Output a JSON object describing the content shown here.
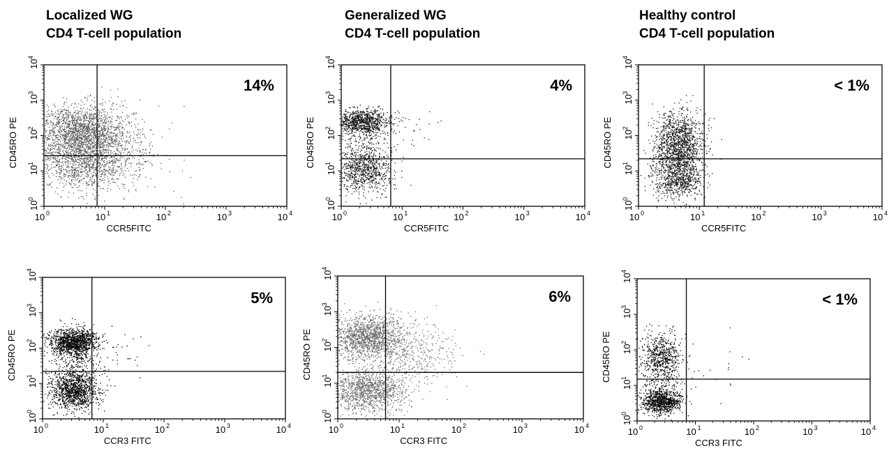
{
  "columns": [
    {
      "title_line1": "Localized WG",
      "title_line2": "CD4 T-cell population"
    },
    {
      "title_line1": "Generalized WG",
      "title_line2": "CD4 T-cell population"
    },
    {
      "title_line1": "Healthy control",
      "title_line2": "CD4 T-cell population"
    }
  ],
  "chart_data": [
    {
      "type": "scatter",
      "xlabel": "CCR5FITC",
      "ylabel": "CD45RO PE",
      "xscale": "log",
      "yscale": "log",
      "xlim": [
        1,
        10000
      ],
      "ylim": [
        1,
        10000
      ],
      "tick_base": "10",
      "tick_exponents": [
        "0",
        "1",
        "2",
        "3",
        "4"
      ],
      "gate_x": 7.5,
      "gate_y": 27,
      "quadrant_percent": "14%",
      "point_color": "#555555",
      "clusters": [
        {
          "x": 4,
          "y": 150,
          "sx": 0.36,
          "sy": 0.35,
          "n": 1500
        },
        {
          "x": 4,
          "y": 20,
          "sx": 0.38,
          "sy": 0.42,
          "n": 1300
        },
        {
          "x": 15,
          "y": 40,
          "sx": 0.4,
          "sy": 0.55,
          "n": 350
        }
      ]
    },
    {
      "type": "scatter",
      "xlabel": "CCR5FITC",
      "ylabel": "CD45RO PE",
      "xscale": "log",
      "yscale": "log",
      "xlim": [
        1,
        10000
      ],
      "ylim": [
        1,
        10000
      ],
      "tick_base": "10",
      "tick_exponents": [
        "0",
        "1",
        "2",
        "3",
        "4"
      ],
      "gate_x": 6.5,
      "gate_y": 22,
      "quadrant_percent": "4%",
      "point_color": "#111111",
      "clusters": [
        {
          "x": 2.2,
          "y": 250,
          "sx": 0.22,
          "sy": 0.18,
          "n": 900
        },
        {
          "x": 2.3,
          "y": 10,
          "sx": 0.24,
          "sy": 0.3,
          "n": 700
        },
        {
          "x": 2.2,
          "y": 40,
          "sx": 0.22,
          "sy": 0.45,
          "n": 300
        },
        {
          "x": 18,
          "y": 150,
          "sx": 0.25,
          "sy": 0.3,
          "n": 18
        }
      ]
    },
    {
      "type": "scatter",
      "xlabel": "CCR5FITC",
      "ylabel": "CD45RO PE",
      "xscale": "log",
      "yscale": "log",
      "xlim": [
        1,
        10000
      ],
      "ylim": [
        1,
        10000
      ],
      "tick_base": "10",
      "tick_exponents": [
        "0",
        "1",
        "2",
        "3",
        "4"
      ],
      "gate_x": 12,
      "gate_y": 22,
      "quadrant_percent": "< 1%",
      "point_color": "#111111",
      "clusters": [
        {
          "x": 4.5,
          "y": 80,
          "sx": 0.2,
          "sy": 0.42,
          "n": 1000
        },
        {
          "x": 4.5,
          "y": 6,
          "sx": 0.2,
          "sy": 0.28,
          "n": 700
        },
        {
          "x": 4.5,
          "y": 25,
          "sx": 0.2,
          "sy": 0.35,
          "n": 400
        }
      ]
    },
    {
      "type": "scatter",
      "xlabel": "CCR3 FITC",
      "ylabel": "CD45RO PE",
      "xscale": "log",
      "yscale": "log",
      "xlim": [
        1,
        10000
      ],
      "ylim": [
        1,
        10000
      ],
      "tick_base": "10",
      "tick_exponents": [
        "0",
        "1",
        "2",
        "3",
        "4"
      ],
      "gate_x": 6.5,
      "gate_y": 22,
      "quadrant_percent": "5%",
      "point_color": "#000000",
      "clusters": [
        {
          "x": 3.3,
          "y": 150,
          "sx": 0.2,
          "sy": 0.2,
          "n": 1300
        },
        {
          "x": 3.3,
          "y": 6,
          "sx": 0.2,
          "sy": 0.27,
          "n": 1100
        },
        {
          "x": 3.3,
          "y": 30,
          "sx": 0.2,
          "sy": 0.35,
          "n": 300
        },
        {
          "x": 18,
          "y": 60,
          "sx": 0.25,
          "sy": 0.35,
          "n": 30
        }
      ]
    },
    {
      "type": "scatter",
      "xlabel": "CCR3 FITC",
      "ylabel": "CD45RO PE",
      "xscale": "log",
      "yscale": "log",
      "xlim": [
        1,
        10000
      ],
      "ylim": [
        1,
        10000
      ],
      "tick_base": "10",
      "tick_exponents": [
        "0",
        "1",
        "2",
        "3",
        "4"
      ],
      "gate_x": 6,
      "gate_y": 20,
      "quadrant_percent": "6%",
      "point_color": "#666666",
      "clusters": [
        {
          "x": 3,
          "y": 200,
          "sx": 0.3,
          "sy": 0.3,
          "n": 1400
        },
        {
          "x": 3,
          "y": 6,
          "sx": 0.3,
          "sy": 0.3,
          "n": 1200
        },
        {
          "x": 14,
          "y": 60,
          "sx": 0.4,
          "sy": 0.45,
          "n": 450
        }
      ]
    },
    {
      "type": "scatter",
      "xlabel": "CCR3 FITC",
      "ylabel": "CD45RO PE",
      "xscale": "log",
      "yscale": "log",
      "xlim": [
        1,
        10000
      ],
      "ylim": [
        1,
        10000
      ],
      "tick_base": "10",
      "tick_exponents": [
        "0",
        "1",
        "2",
        "3",
        "4"
      ],
      "gate_x": 7,
      "gate_y": 15,
      "quadrant_percent": "< 1%",
      "point_color": "#000000",
      "clusters": [
        {
          "x": 2.6,
          "y": 3.5,
          "sx": 0.17,
          "sy": 0.17,
          "n": 900
        },
        {
          "x": 2.6,
          "y": 80,
          "sx": 0.17,
          "sy": 0.3,
          "n": 500
        },
        {
          "x": 2.6,
          "y": 18,
          "sx": 0.2,
          "sy": 0.35,
          "n": 250
        },
        {
          "x": 30,
          "y": 25,
          "sx": 0.35,
          "sy": 0.4,
          "n": 14
        }
      ]
    }
  ]
}
